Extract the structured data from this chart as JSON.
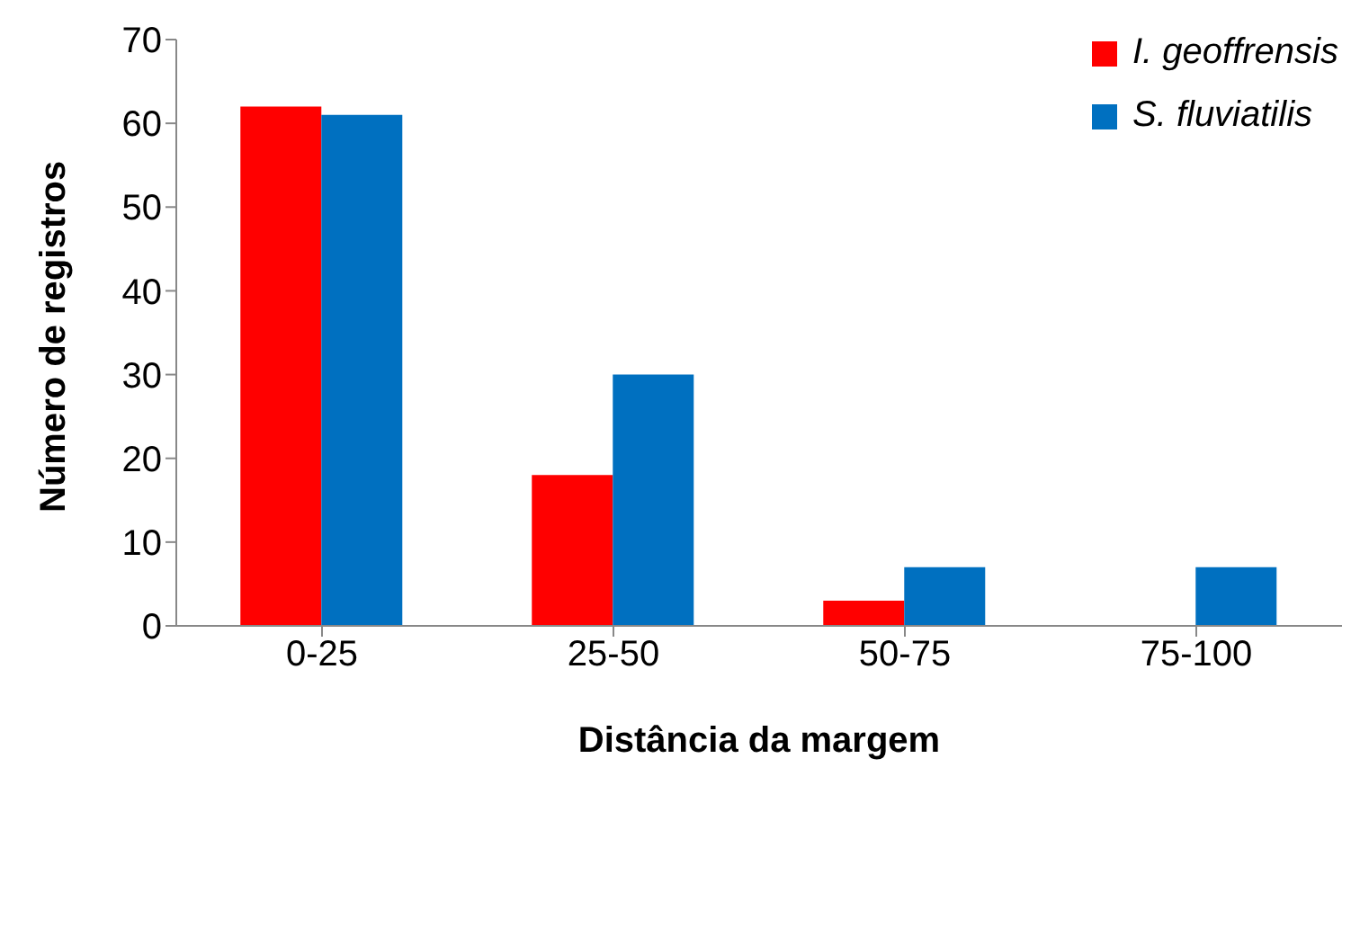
{
  "chart_data": {
    "type": "bar",
    "xlabel": "Distância da margem",
    "ylabel": "Número de registros",
    "categories": [
      "0-25",
      "25-50",
      "50-75",
      "75-100"
    ],
    "series": [
      {
        "name": "I. geoffrensis",
        "color": "#ff0000",
        "values": [
          62,
          18,
          3,
          0
        ]
      },
      {
        "name": "S. fluviatilis",
        "color": "#0070c0",
        "values": [
          61,
          30,
          7,
          7
        ]
      }
    ],
    "ylim": [
      0,
      70
    ],
    "yticks": [
      0,
      10,
      20,
      30,
      40,
      50,
      60,
      70
    ],
    "grid": false,
    "legend": "top right"
  }
}
